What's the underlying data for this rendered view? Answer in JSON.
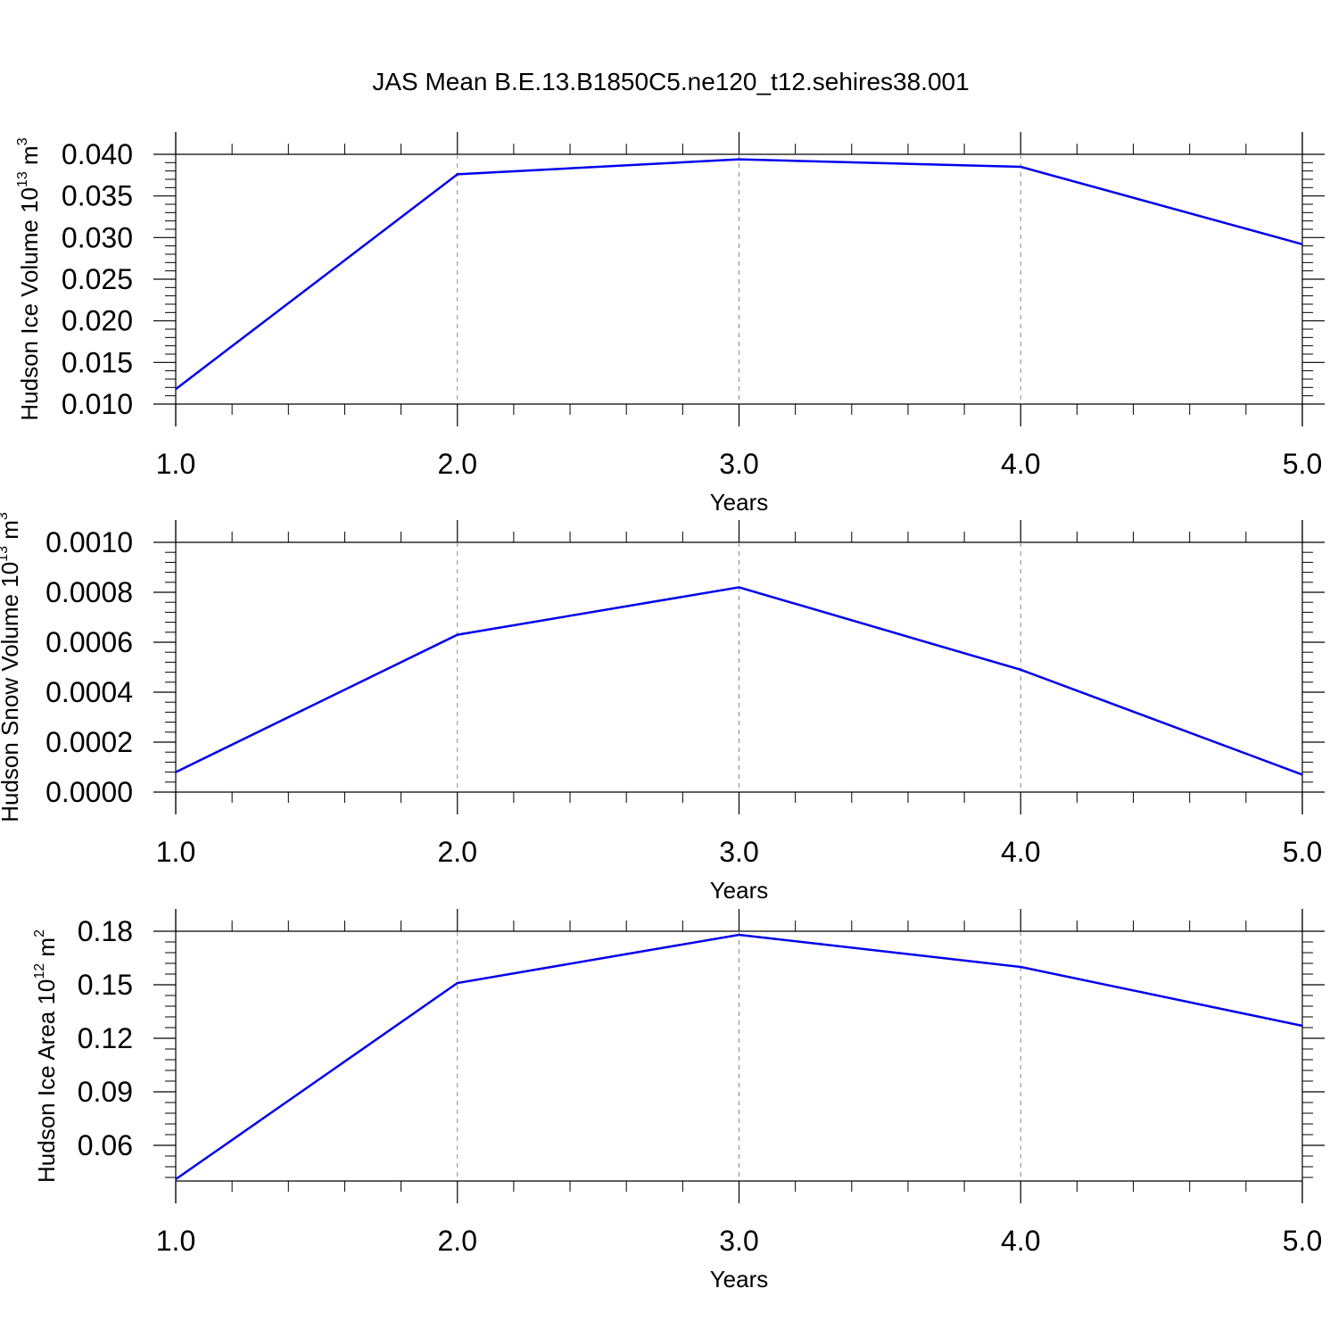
{
  "title": "JAS Mean B.E.13.B1850C5.ne120_t12.sehires38.001",
  "colors": {
    "line": "#0000ee",
    "axis": "#000000",
    "grid": "#888888"
  },
  "chart_data": [
    {
      "type": "line",
      "xlabel": "Years",
      "ylabel": "Hudson Ice Volume 10",
      "ylabel_exp": "13",
      "ylabel_unit": " m",
      "ylabel_unit_exp": "3",
      "xlim": [
        1.0,
        5.0
      ],
      "ylim": [
        0.01,
        0.04
      ],
      "x_ticks": [
        "1.0",
        "2.0",
        "3.0",
        "4.0",
        "5.0"
      ],
      "y_ticks": [
        "0.010",
        "0.015",
        "0.020",
        "0.025",
        "0.030",
        "0.035",
        "0.040"
      ],
      "grid": "vertical dashed at major x ticks",
      "series": [
        {
          "x": [
            1,
            2,
            3,
            4,
            5
          ],
          "values": [
            0.0118,
            0.0376,
            0.0394,
            0.0385,
            0.0292
          ]
        }
      ]
    },
    {
      "type": "line",
      "xlabel": "Years",
      "ylabel": "Hudson Snow Volume 10",
      "ylabel_exp": "13",
      "ylabel_unit": " m",
      "ylabel_unit_exp": "3",
      "xlim": [
        1.0,
        5.0
      ],
      "ylim": [
        0.0,
        0.001
      ],
      "x_ticks": [
        "1.0",
        "2.0",
        "3.0",
        "4.0",
        "5.0"
      ],
      "y_ticks": [
        "0.0000",
        "0.0002",
        "0.0004",
        "0.0006",
        "0.0008",
        "0.0010"
      ],
      "grid": "vertical dashed at major x ticks",
      "series": [
        {
          "x": [
            1,
            2,
            3,
            4,
            5
          ],
          "values": [
            8e-05,
            0.00063,
            0.00082,
            0.00049,
            7e-05
          ]
        }
      ]
    },
    {
      "type": "line",
      "xlabel": "Years",
      "ylabel": "Hudson Ice Area 10",
      "ylabel_exp": "12",
      "ylabel_unit": " m",
      "ylabel_unit_exp": "2",
      "xlim": [
        1.0,
        5.0
      ],
      "ylim": [
        0.04,
        0.18
      ],
      "x_ticks": [
        "1.0",
        "2.0",
        "3.0",
        "4.0",
        "5.0"
      ],
      "y_ticks": [
        "0.06",
        "0.09",
        "0.12",
        "0.15",
        "0.18"
      ],
      "y_tick_values": [
        0.06,
        0.09,
        0.12,
        0.15,
        0.18
      ],
      "grid": "vertical dashed at major x ticks",
      "series": [
        {
          "x": [
            1,
            2,
            3,
            4,
            5
          ],
          "values": [
            0.041,
            0.151,
            0.178,
            0.16,
            0.127
          ]
        }
      ]
    }
  ]
}
